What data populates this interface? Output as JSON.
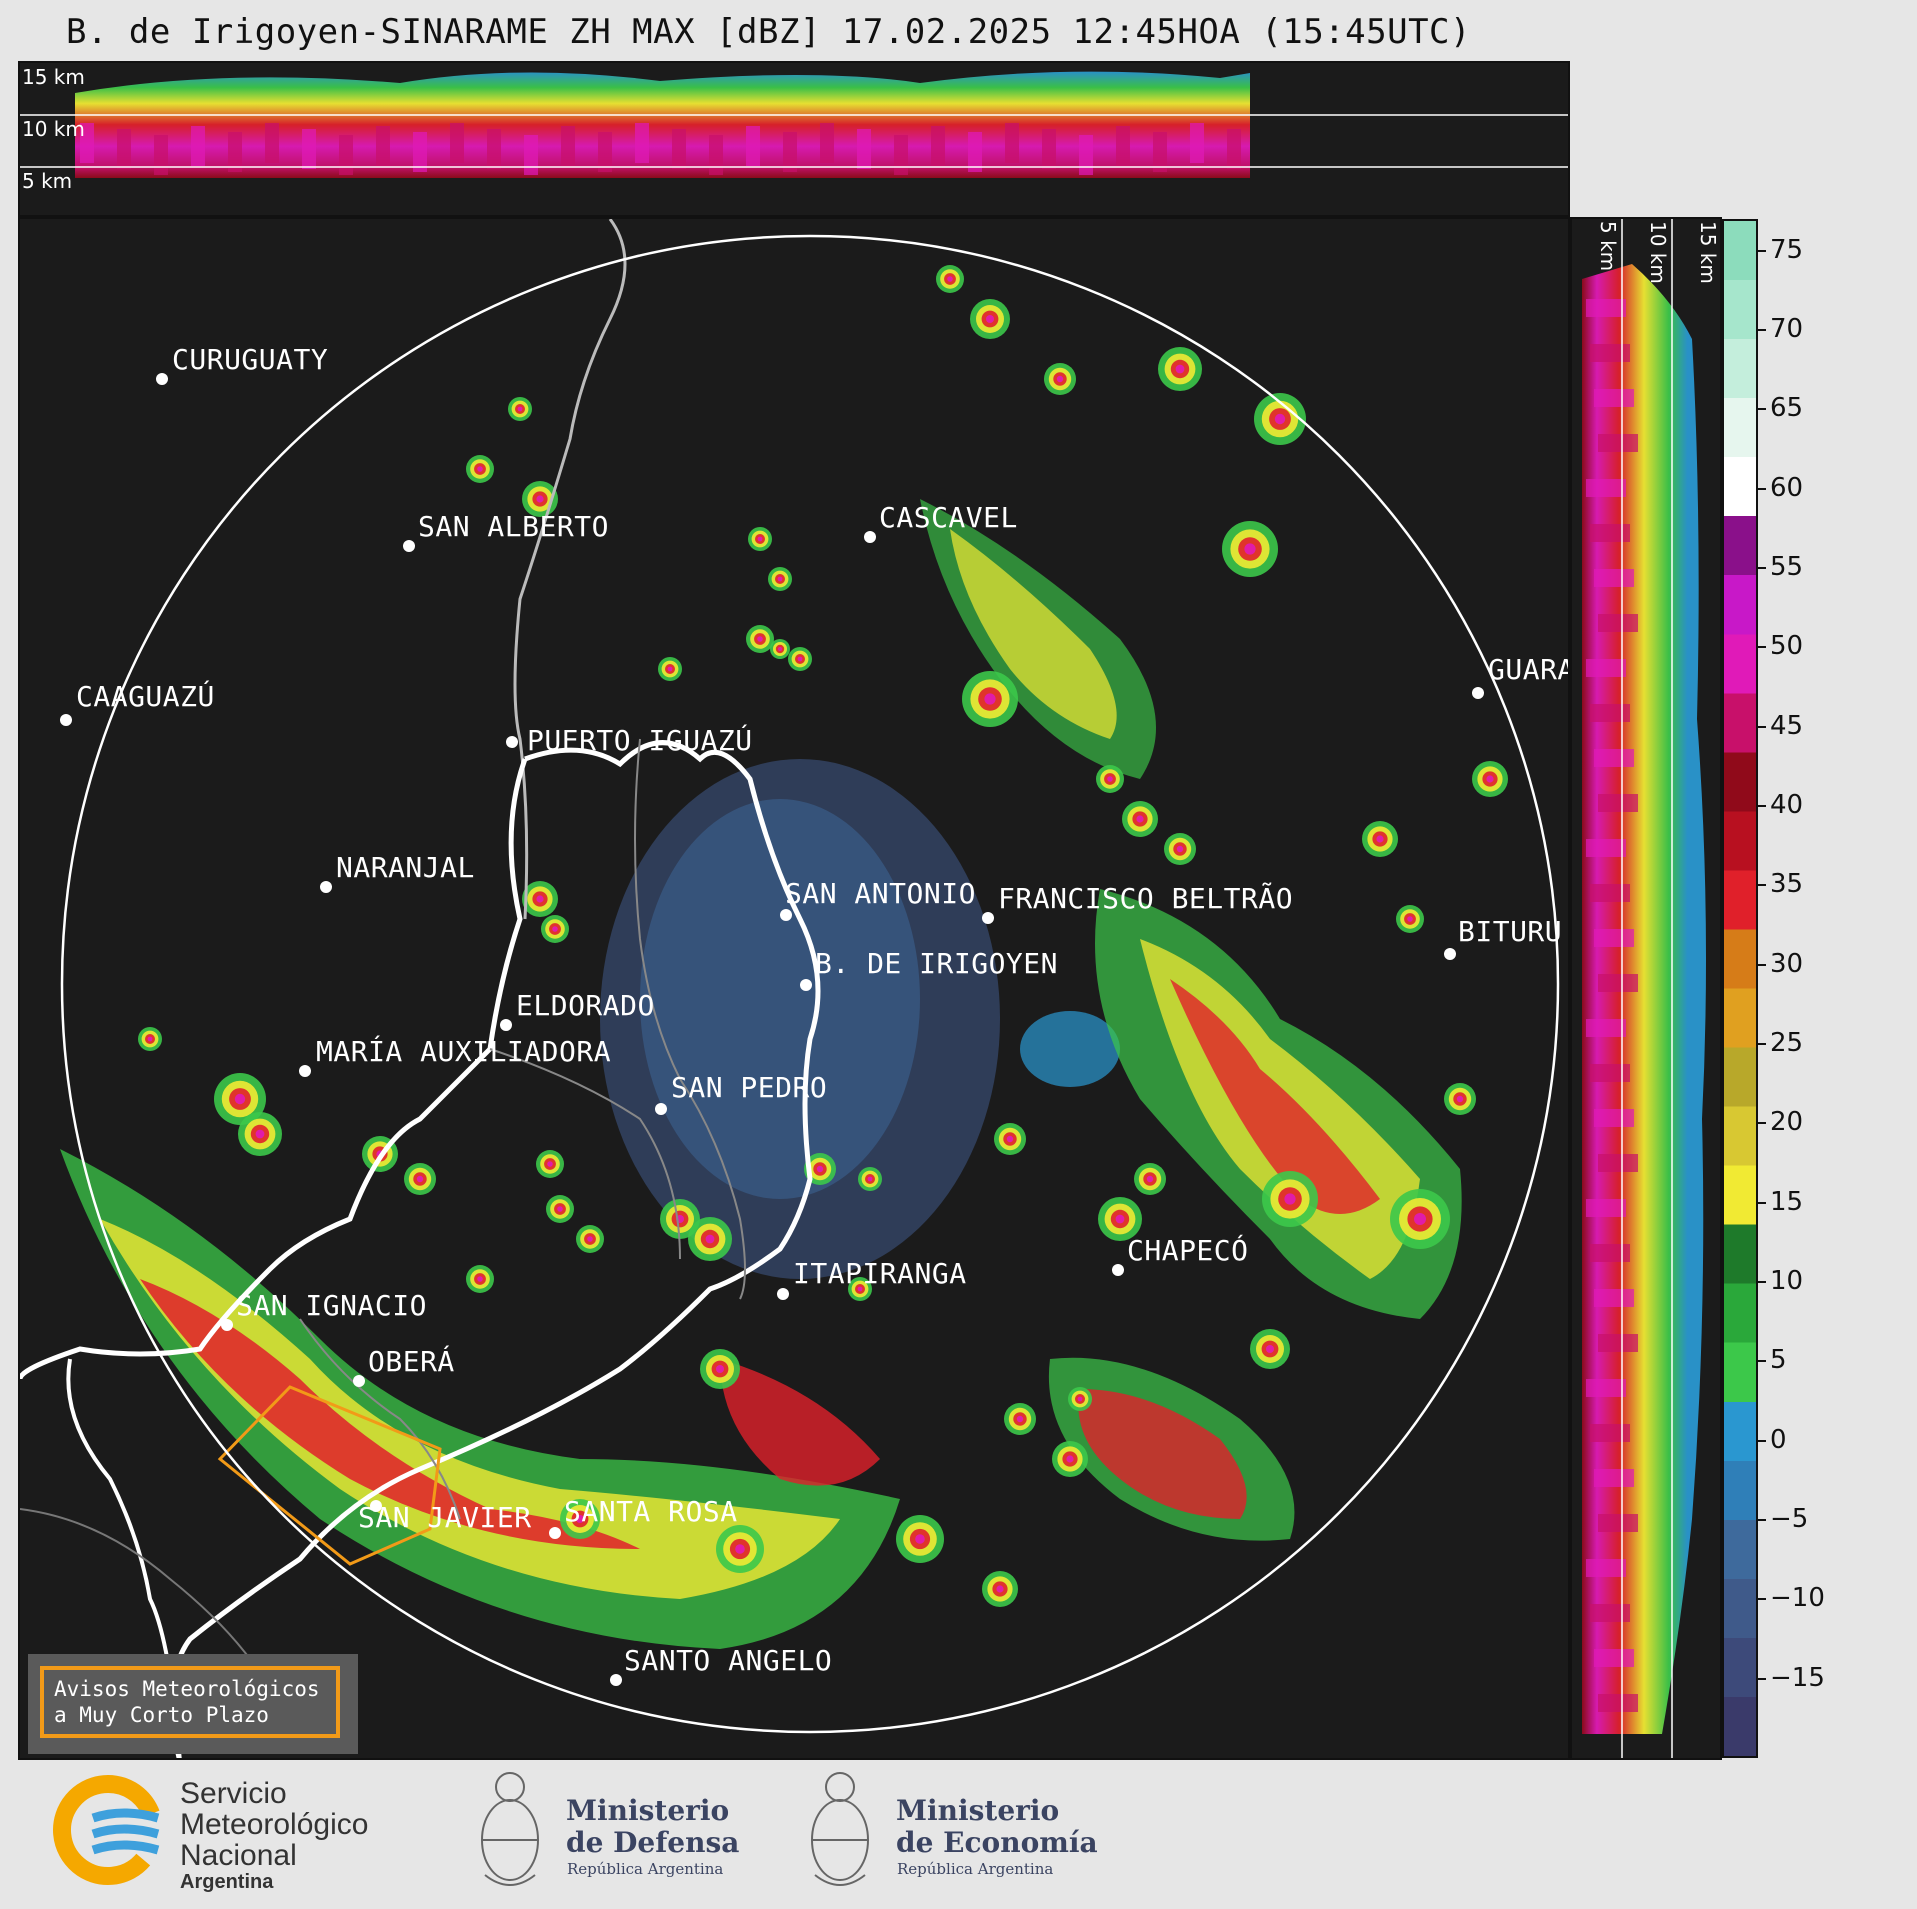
{
  "title": "B. de Irigoyen-SINARAME ZH MAX [dBZ] 17.02.2025 12:45HOA (15:45UTC)",
  "top_panel": {
    "km_labels": [
      "15 km",
      "10 km",
      "5 km"
    ]
  },
  "side_panel": {
    "km_labels": [
      "5 km",
      "10 km",
      "15 km"
    ]
  },
  "colorbar": {
    "unit": "dBZ",
    "ticks": [
      "75",
      "70",
      "65",
      "60",
      "55",
      "50",
      "45",
      "40",
      "35",
      "30",
      "25",
      "20",
      "15",
      "10",
      "5",
      "0",
      "−5",
      "−10",
      "−15"
    ],
    "colors": [
      "#3a3a6a",
      "#3d4a7a",
      "#3f5a8a",
      "#3e6a9c",
      "#2f7fb8",
      "#2a97d0",
      "#3cc84a",
      "#2aa83a",
      "#1e7a2a",
      "#f1ea33",
      "#d8c832",
      "#b8a82a",
      "#e0a020",
      "#d67c18",
      "#e0202a",
      "#b81020",
      "#900a1a",
      "#c8106a",
      "#e01ab8",
      "#c818c8",
      "#8a108a",
      "#ffffff",
      "#e6f6ee",
      "#c4eedc",
      "#a6e6cc",
      "#8cdcbc"
    ]
  },
  "cities": [
    {
      "name": "CURUGUATY"
    },
    {
      "name": "SAN ALBERTO"
    },
    {
      "name": "CASCAVEL"
    },
    {
      "name": "CAAGUAZÚ"
    },
    {
      "name": "GUARA"
    },
    {
      "name": "PUERTO IGUAZÚ"
    },
    {
      "name": "NARANJAL"
    },
    {
      "name": "SAN ANTONIO"
    },
    {
      "name": "FRANCISCO BELTRÃO"
    },
    {
      "name": "BITURU"
    },
    {
      "name": "B. DE IRIGOYEN"
    },
    {
      "name": "ELDORADO"
    },
    {
      "name": "MARÍA AUXILIADORA"
    },
    {
      "name": "SAN PEDRO"
    },
    {
      "name": "CHAPECÓ"
    },
    {
      "name": "ITAPIRANGA"
    },
    {
      "name": "SAN IGNACIO"
    },
    {
      "name": "OBERÁ"
    },
    {
      "name": "SAN JAVIER"
    },
    {
      "name": "SANTA ROSA"
    },
    {
      "name": "SANTO ANGELO"
    }
  ],
  "avisos": {
    "line1": "Avisos Meteorológicos",
    "line2": "a Muy Corto Plazo"
  },
  "logos": {
    "smn": {
      "line1": "Servicio",
      "line2": "Meteorológico",
      "line3": "Nacional",
      "line4": "Argentina"
    },
    "defensa": {
      "line1": "Ministerio",
      "line2": "de Defensa",
      "sub": "República Argentina"
    },
    "economia": {
      "line1": "Ministerio",
      "line2": "de Economía",
      "sub": "República Argentina"
    }
  }
}
